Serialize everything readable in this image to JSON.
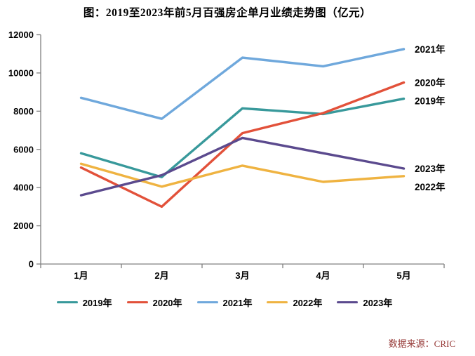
{
  "chart_data": {
    "type": "line",
    "title": "图：2019至2023年前5月百强房企单月业绩走势图（亿元）",
    "categories": [
      "1月",
      "2月",
      "3月",
      "4月",
      "5月"
    ],
    "series": [
      {
        "name": "2019年",
        "color": "#38999B",
        "values": [
          5800,
          4550,
          8150,
          7850,
          8650
        ]
      },
      {
        "name": "2020年",
        "color": "#E2513A",
        "values": [
          5050,
          3000,
          6850,
          7900,
          9500
        ]
      },
      {
        "name": "2021年",
        "color": "#6FA8DC",
        "values": [
          8700,
          7600,
          10800,
          10350,
          11250
        ]
      },
      {
        "name": "2022年",
        "color": "#EFB341",
        "values": [
          5250,
          4050,
          5150,
          4300,
          4600
        ]
      },
      {
        "name": "2023年",
        "color": "#5B4A8E",
        "values": [
          3600,
          4650,
          6600,
          5800,
          5000
        ]
      }
    ],
    "ylim": [
      0,
      12000
    ],
    "y_ticks": [
      0,
      2000,
      4000,
      6000,
      8000,
      10000,
      12000
    ],
    "grid": false,
    "legend_position": "bottom",
    "line_labels_right": [
      "2021年",
      "2020年",
      "2019年",
      "2023年",
      "2022年"
    ],
    "axis_color": "#808080"
  },
  "footer": {
    "source": "数据来源：CRIC"
  }
}
